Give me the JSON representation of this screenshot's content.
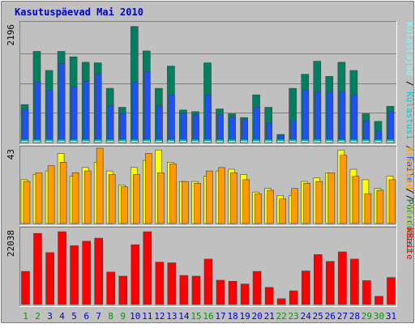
{
  "chart_data": {
    "type": "bar",
    "title": "Kasutuspäevad Mai 2010",
    "categories": [
      "1",
      "2",
      "3",
      "4",
      "5",
      "6",
      "7",
      "8",
      "9",
      "10",
      "11",
      "12",
      "13",
      "14",
      "15",
      "16",
      "17",
      "18",
      "19",
      "20",
      "21",
      "22",
      "23",
      "24",
      "25",
      "26",
      "27",
      "28",
      "29",
      "30",
      "31"
    ],
    "weekend_days": [
      "1",
      "2",
      "8",
      "9",
      "15",
      "16",
      "22",
      "23",
      "29",
      "30"
    ],
    "colors": {
      "frame": "#c0c0c0",
      "plot_bg": "#c0c0c0",
      "title": "#0000cc",
      "weekday_label": "#0000cc",
      "weekend_label": "#009900",
      "kulastajad": "#80ffff",
      "kulastused": "#00c8c8",
      "lehekulgi": "#008060",
      "failid": "#1e50ff",
      "hitid": "#ffff00",
      "hitid_label": "#cccc00",
      "arvuteid": "#ff9a00",
      "kbaite": "#ff0000"
    },
    "panels": [
      {
        "name": "traffic",
        "axis_max_label": "2196",
        "ylim": [
          0,
          2196
        ],
        "legend": [
          {
            "text": "Külastajad",
            "color_key": "kulastajad"
          },
          {
            "text": " / ",
            "color_key": "frame_sep"
          },
          {
            "text": "Külastusi",
            "color_key": "kulastused"
          },
          {
            "text": " / ",
            "color_key": "frame_sep"
          },
          {
            "text": "Faile",
            "color_key": "failid"
          },
          {
            "text": " / ",
            "color_key": "frame_sep"
          },
          {
            "text": "Pöördumisi",
            "color_key": "lehekulgi"
          }
        ],
        "series": [
          {
            "name": "Pöördumisi",
            "color_key": "lehekulgi",
            "values": [
              700,
              1680,
              1330,
              1680,
              1580,
              1480,
              1470,
              1000,
              650,
              2140,
              1690,
              1000,
              1410,
              600,
              570,
              1470,
              620,
              530,
              460,
              880,
              650,
              150,
              1000,
              1260,
              1500,
              1220,
              1480,
              1330,
              530,
              390,
              670
            ]
          },
          {
            "name": "Faile",
            "color_key": "failid",
            "values": [
              610,
              1110,
              960,
              1460,
              1030,
              1130,
              1270,
              680,
              540,
              1110,
              1310,
              680,
              880,
              540,
              510,
              880,
              510,
              470,
              420,
              650,
              360,
              130,
              400,
              960,
              940,
              940,
              940,
              880,
              400,
              210,
              570
            ]
          },
          {
            "name": "Külastusi",
            "color_key": "kulastused",
            "values": [
              60,
              60,
              60,
              60,
              60,
              60,
              60,
              60,
              60,
              60,
              60,
              60,
              60,
              60,
              60,
              60,
              60,
              60,
              60,
              60,
              60,
              60,
              60,
              60,
              60,
              60,
              60,
              60,
              60,
              60,
              60
            ]
          },
          {
            "name": "Külastajad",
            "color_key": "kulastajad",
            "values": [
              40,
              40,
              40,
              40,
              40,
              40,
              40,
              40,
              40,
              40,
              40,
              40,
              40,
              40,
              40,
              40,
              40,
              40,
              40,
              40,
              40,
              40,
              40,
              40,
              40,
              40,
              40,
              40,
              40,
              40,
              40
            ]
          }
        ]
      },
      {
        "name": "hosts",
        "axis_max_label": "43",
        "ylim": [
          0,
          43
        ],
        "legend": [
          {
            "text": "Arvuteid",
            "color_key": "arvuteid"
          },
          {
            "text": " / ",
            "color_key": "frame_sep"
          },
          {
            "text": "Hitid",
            "color_key": "hitid_label"
          }
        ],
        "series": [
          {
            "name": "Hitid",
            "color_key": "hitid",
            "values": [
              25,
              28,
              30,
              40,
              27,
              32,
              35,
              30,
              22,
              32,
              36,
              42,
              35,
              24,
              24,
              27,
              30,
              31,
              28,
              18,
              20,
              16,
              16,
              24,
              26,
              29,
              42,
              31,
              25,
              20,
              27
            ]
          },
          {
            "name": "Arvuteid",
            "color_key": "arvuteid",
            "values": [
              24,
              29,
              33,
              35,
              29,
              30,
              43,
              28,
              21,
              28,
              40,
              29,
              34,
              24,
              23,
              30,
              32,
              29,
              25,
              17,
              19,
              14,
              20,
              23,
              24,
              29,
              39,
              27,
              17,
              19,
              25
            ]
          }
        ]
      },
      {
        "name": "kbytes",
        "axis_max_label": "22038",
        "ylim": [
          0,
          22038
        ],
        "legend": [
          {
            "text": "KBaite",
            "color_key": "kbaite"
          }
        ],
        "series": [
          {
            "name": "KBaite",
            "color_key": "kbaite",
            "values": [
              9700,
              20800,
              15200,
              21300,
              17200,
              18500,
              19400,
              9500,
              8300,
              17500,
              21300,
              12400,
              12200,
              8500,
              8300,
              13300,
              7100,
              6800,
              6000,
              9700,
              5000,
              1700,
              4000,
              9800,
              14600,
              12600,
              15400,
              13300,
              7000,
              2400,
              7900
            ]
          }
        ]
      }
    ]
  }
}
